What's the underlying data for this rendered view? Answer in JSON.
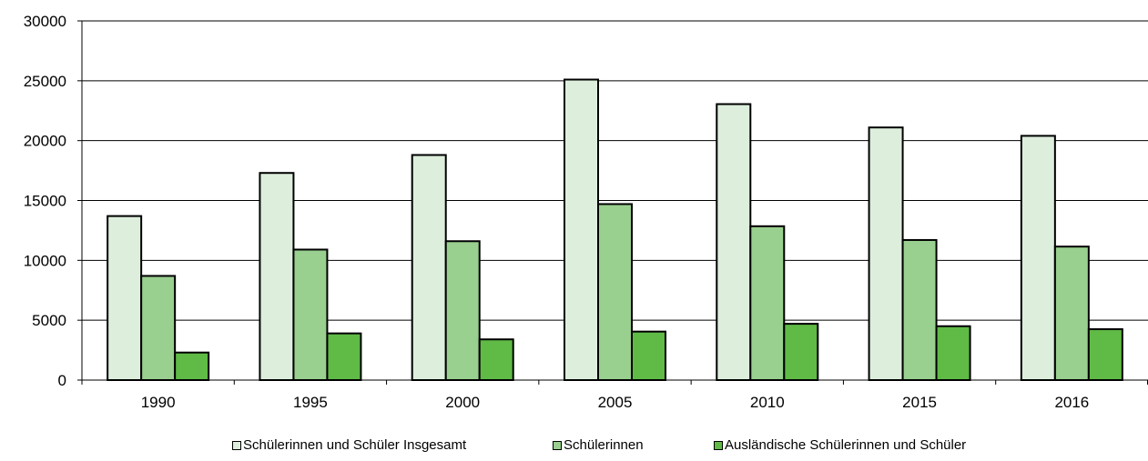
{
  "chart_data": {
    "type": "bar",
    "categories": [
      "1990",
      "1995",
      "2000",
      "2005",
      "2010",
      "2015",
      "2016"
    ],
    "series": [
      {
        "name": "Schülerinnen und Schüler Insgesamt",
        "color": "#DDEEDD",
        "values": [
          13700,
          17300,
          18800,
          25100,
          23050,
          21100,
          20400
        ]
      },
      {
        "name": "Schülerinnen",
        "color": "#99CF8F",
        "values": [
          8700,
          10900,
          11600,
          14700,
          12850,
          11700,
          11150
        ]
      },
      {
        "name": "Ausländische Schülerinnen und Schüler",
        "color": "#5FBA46",
        "values": [
          2300,
          3900,
          3400,
          4050,
          4700,
          4500,
          4250
        ]
      }
    ],
    "yticks": [
      0,
      5000,
      10000,
      15000,
      20000,
      25000,
      30000
    ],
    "ylim": [
      0,
      30000
    ],
    "title": "",
    "xlabel": "",
    "ylabel": "",
    "grid": true,
    "legend_position": "bottom"
  }
}
